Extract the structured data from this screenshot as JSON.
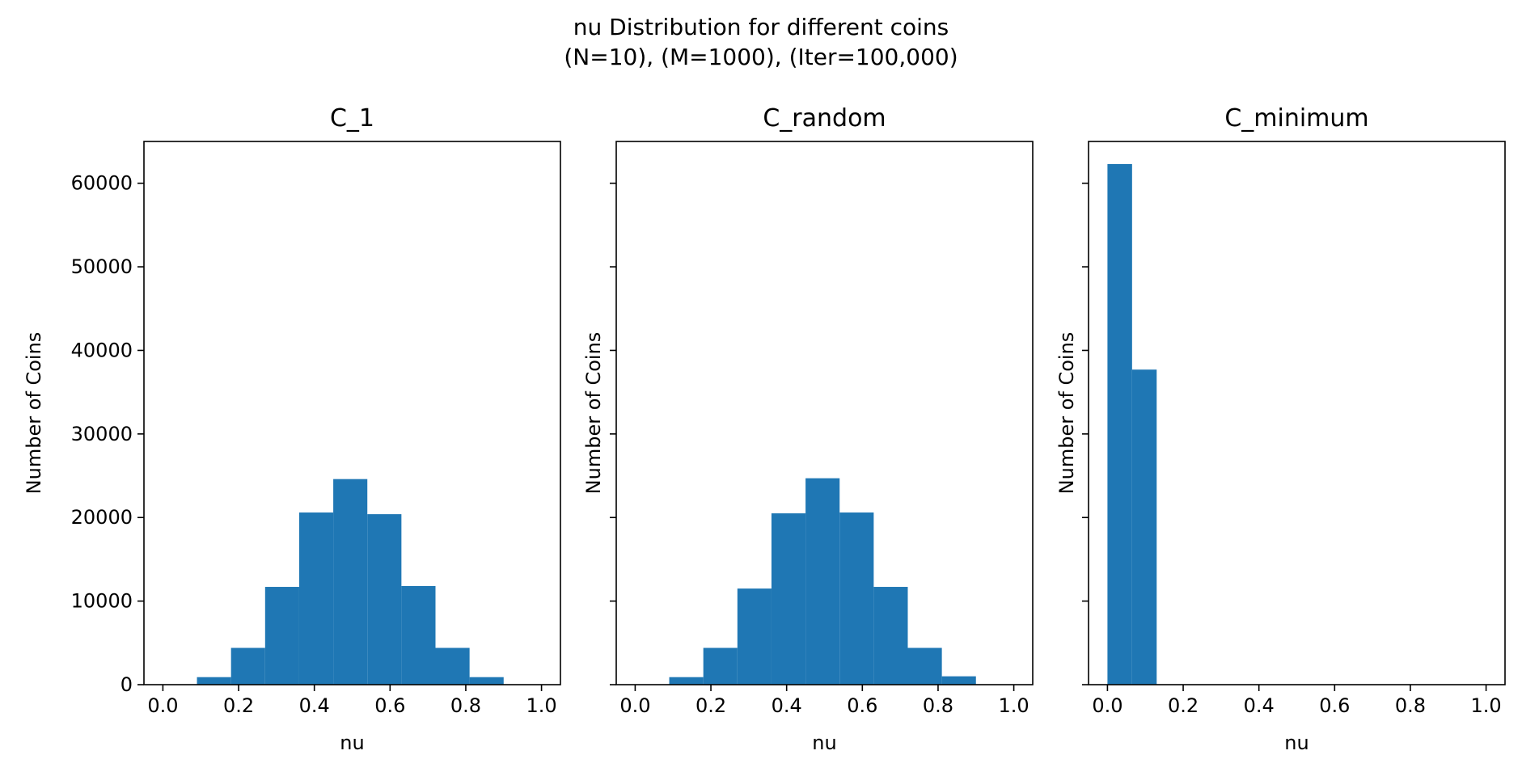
{
  "figure": {
    "suptitle_line1": "nu Distribution for different coins",
    "suptitle_line2": "(N=10), (M=1000), (Iter=100,000)"
  },
  "chart_data": [
    {
      "type": "bar",
      "title": "C_1",
      "xlabel": "nu",
      "ylabel": "Number of Coins",
      "xlim": [
        -0.05,
        1.05
      ],
      "ylim": [
        0,
        65000
      ],
      "xticks": [
        "0.0",
        "0.2",
        "0.4",
        "0.6",
        "0.8",
        "1.0"
      ],
      "yticks": [
        "0",
        "10000",
        "20000",
        "30000",
        "40000",
        "50000",
        "60000"
      ],
      "show_yticklabels": true,
      "bins": [
        {
          "x0": 0.0,
          "x1": 0.09,
          "value": 20
        },
        {
          "x0": 0.09,
          "x1": 0.18,
          "value": 900
        },
        {
          "x0": 0.18,
          "x1": 0.27,
          "value": 4400
        },
        {
          "x0": 0.27,
          "x1": 0.36,
          "value": 11700
        },
        {
          "x0": 0.36,
          "x1": 0.45,
          "value": 20600
        },
        {
          "x0": 0.45,
          "x1": 0.54,
          "value": 24600
        },
        {
          "x0": 0.54,
          "x1": 0.63,
          "value": 20400
        },
        {
          "x0": 0.63,
          "x1": 0.72,
          "value": 11800
        },
        {
          "x0": 0.72,
          "x1": 0.81,
          "value": 4400
        },
        {
          "x0": 0.81,
          "x1": 0.9,
          "value": 900
        }
      ]
    },
    {
      "type": "bar",
      "title": "C_random",
      "xlabel": "nu",
      "ylabel": "Number of Coins",
      "xlim": [
        -0.05,
        1.05
      ],
      "ylim": [
        0,
        65000
      ],
      "xticks": [
        "0.0",
        "0.2",
        "0.4",
        "0.6",
        "0.8",
        "1.0"
      ],
      "yticks": [
        "0",
        "10000",
        "20000",
        "30000",
        "40000",
        "50000",
        "60000"
      ],
      "show_yticklabels": false,
      "bins": [
        {
          "x0": 0.0,
          "x1": 0.09,
          "value": 20
        },
        {
          "x0": 0.09,
          "x1": 0.18,
          "value": 900
        },
        {
          "x0": 0.18,
          "x1": 0.27,
          "value": 4400
        },
        {
          "x0": 0.27,
          "x1": 0.36,
          "value": 11500
        },
        {
          "x0": 0.36,
          "x1": 0.45,
          "value": 20500
        },
        {
          "x0": 0.45,
          "x1": 0.54,
          "value": 24700
        },
        {
          "x0": 0.54,
          "x1": 0.63,
          "value": 20600
        },
        {
          "x0": 0.63,
          "x1": 0.72,
          "value": 11700
        },
        {
          "x0": 0.72,
          "x1": 0.81,
          "value": 4400
        },
        {
          "x0": 0.81,
          "x1": 0.9,
          "value": 1000
        }
      ]
    },
    {
      "type": "bar",
      "title": "C_minimum",
      "xlabel": "nu",
      "ylabel": "Number of Coins",
      "xlim": [
        -0.05,
        1.05
      ],
      "ylim": [
        0,
        65000
      ],
      "xticks": [
        "0.0",
        "0.2",
        "0.4",
        "0.6",
        "0.8",
        "1.0"
      ],
      "yticks": [
        "0",
        "10000",
        "20000",
        "30000",
        "40000",
        "50000",
        "60000"
      ],
      "show_yticklabels": false,
      "bins": [
        {
          "x0": 0.0,
          "x1": 0.065,
          "value": 62300
        },
        {
          "x0": 0.065,
          "x1": 0.13,
          "value": 37700
        }
      ]
    }
  ],
  "colors": {
    "bar": "#1f77b4",
    "axis": "#000000",
    "background": "#ffffff"
  }
}
